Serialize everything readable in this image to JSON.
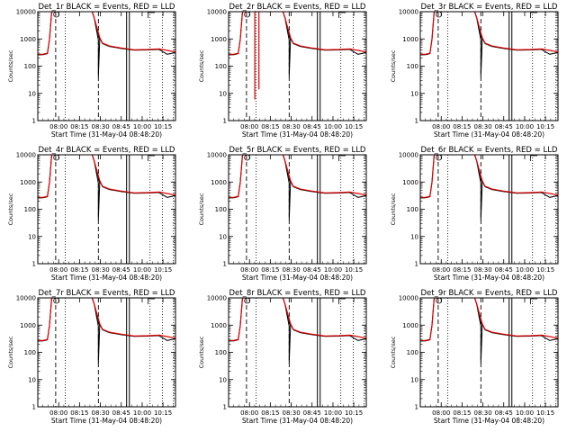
{
  "figure": {
    "colors": {
      "events": "#000000",
      "lld": "#dd0000",
      "background": "#ffffff"
    }
  },
  "chart_data": [
    {
      "type": "line",
      "title": "Det_1r BLACK = Events, RED = LLD",
      "xlabel": "Start Time (31-May-04 08:48:20)",
      "ylabel": "Counts/sec",
      "y_scale": "log",
      "ylim": [
        1,
        10000
      ],
      "y_ticks": [
        "1",
        "10",
        "100",
        "1000",
        "10000"
      ],
      "x_ticks": [
        "08:00",
        "08:15",
        "08:30",
        "08:45",
        "10:00",
        "10:15"
      ],
      "series": [
        {
          "name": "BLACK = Events",
          "color": "#000000"
        },
        {
          "name": "RED = LLD",
          "color": "#dd0000"
        }
      ],
      "variant": 0
    },
    {
      "type": "line",
      "title": "Det_2r BLACK = Events, RED = LLD",
      "xlabel": "Start Time (31-May-04 08:48:20)",
      "ylabel": "Counts/sec",
      "y_scale": "log",
      "ylim": [
        1,
        10000
      ],
      "y_ticks": [
        "1",
        "10",
        "100",
        "1000",
        "10000"
      ],
      "x_ticks": [
        "08:00",
        "08:15",
        "08:30",
        "08:45",
        "10:00",
        "10:15"
      ],
      "series": [
        {
          "name": "BLACK = Events",
          "color": "#000000"
        },
        {
          "name": "RED = LLD",
          "color": "#dd0000"
        }
      ],
      "variant": 1
    },
    {
      "type": "line",
      "title": "Det_3r BLACK = Events, RED = LLD",
      "xlabel": "Start Time (31-May-04 08:48:20)",
      "ylabel": "Counts/sec",
      "y_scale": "log",
      "ylim": [
        1,
        10000
      ],
      "y_ticks": [
        "1",
        "10",
        "100",
        "1000",
        "10000"
      ],
      "x_ticks": [
        "08:00",
        "08:15",
        "08:30",
        "08:45",
        "10:00",
        "10:15"
      ],
      "series": [
        {
          "name": "BLACK = Events",
          "color": "#000000"
        },
        {
          "name": "RED = LLD",
          "color": "#dd0000"
        }
      ],
      "variant": 2
    },
    {
      "type": "line",
      "title": "Det_4r BLACK = Events, RED = LLD",
      "xlabel": "Start Time (31-May-04 08:48:20)",
      "ylabel": "Counts/sec",
      "y_scale": "log",
      "ylim": [
        1,
        10000
      ],
      "y_ticks": [
        "1",
        "10",
        "100",
        "1000",
        "10000"
      ],
      "x_ticks": [
        "08:00",
        "08:15",
        "08:30",
        "08:45",
        "10:00",
        "10:15"
      ],
      "series": [
        {
          "name": "BLACK = Events",
          "color": "#000000"
        },
        {
          "name": "RED = LLD",
          "color": "#dd0000"
        }
      ],
      "variant": 0
    },
    {
      "type": "line",
      "title": "Det_5r BLACK = Events, RED = LLD",
      "xlabel": "Start Time (31-May-04 08:48:20)",
      "ylabel": "Counts/sec",
      "y_scale": "log",
      "ylim": [
        1,
        10000
      ],
      "y_ticks": [
        "1",
        "10",
        "100",
        "1000",
        "10000"
      ],
      "x_ticks": [
        "08:00",
        "08:15",
        "08:30",
        "08:45",
        "10:00",
        "10:15"
      ],
      "series": [
        {
          "name": "BLACK = Events",
          "color": "#000000"
        },
        {
          "name": "RED = LLD",
          "color": "#dd0000"
        }
      ],
      "variant": 0
    },
    {
      "type": "line",
      "title": "Det_6r BLACK = Events, RED = LLD",
      "xlabel": "Start Time (31-May-04 08:48:20)",
      "ylabel": "Counts/sec",
      "y_scale": "log",
      "ylim": [
        1,
        10000
      ],
      "y_ticks": [
        "1",
        "10",
        "100",
        "1000",
        "10000"
      ],
      "x_ticks": [
        "08:00",
        "08:15",
        "08:30",
        "08:45",
        "10:00",
        "10:15"
      ],
      "series": [
        {
          "name": "BLACK = Events",
          "color": "#000000"
        },
        {
          "name": "RED = LLD",
          "color": "#dd0000"
        }
      ],
      "variant": 2
    },
    {
      "type": "line",
      "title": "Det_7r BLACK = Events, RED = LLD",
      "xlabel": "Start Time (31-May-04 08:48:20)",
      "ylabel": "Counts/sec",
      "y_scale": "log",
      "ylim": [
        1,
        10000
      ],
      "y_ticks": [
        "1",
        "10",
        "100",
        "1000",
        "10000"
      ],
      "x_ticks": [
        "08:00",
        "08:15",
        "08:30",
        "08:45",
        "10:00",
        "10:15"
      ],
      "series": [
        {
          "name": "BLACK = Events",
          "color": "#000000"
        },
        {
          "name": "RED = LLD",
          "color": "#dd0000"
        }
      ],
      "variant": 0
    },
    {
      "type": "line",
      "title": "Det_8r BLACK = Events, RED = LLD",
      "xlabel": "Start Time (31-May-04 08:48:20)",
      "ylabel": "Counts/sec",
      "y_scale": "log",
      "ylim": [
        1,
        10000
      ],
      "y_ticks": [
        "1",
        "10",
        "100",
        "1000",
        "10000"
      ],
      "x_ticks": [
        "08:00",
        "08:15",
        "08:30",
        "08:45",
        "10:00",
        "10:15"
      ],
      "series": [
        {
          "name": "BLACK = Events",
          "color": "#000000"
        },
        {
          "name": "RED = LLD",
          "color": "#dd0000"
        }
      ],
      "variant": 0
    },
    {
      "type": "line",
      "title": "Det_9r BLACK = Events, RED = LLD",
      "xlabel": "Start Time (31-May-04 08:48:20)",
      "ylabel": "Counts/sec",
      "y_scale": "log",
      "ylim": [
        1,
        10000
      ],
      "y_ticks": [
        "1",
        "10",
        "100",
        "1000",
        "10000"
      ],
      "x_ticks": [
        "08:00",
        "08:15",
        "08:30",
        "08:45",
        "10:00",
        "10:15"
      ],
      "series": [
        {
          "name": "BLACK = Events",
          "color": "#000000"
        },
        {
          "name": "RED = LLD",
          "color": "#dd0000"
        }
      ],
      "variant": 2
    }
  ]
}
